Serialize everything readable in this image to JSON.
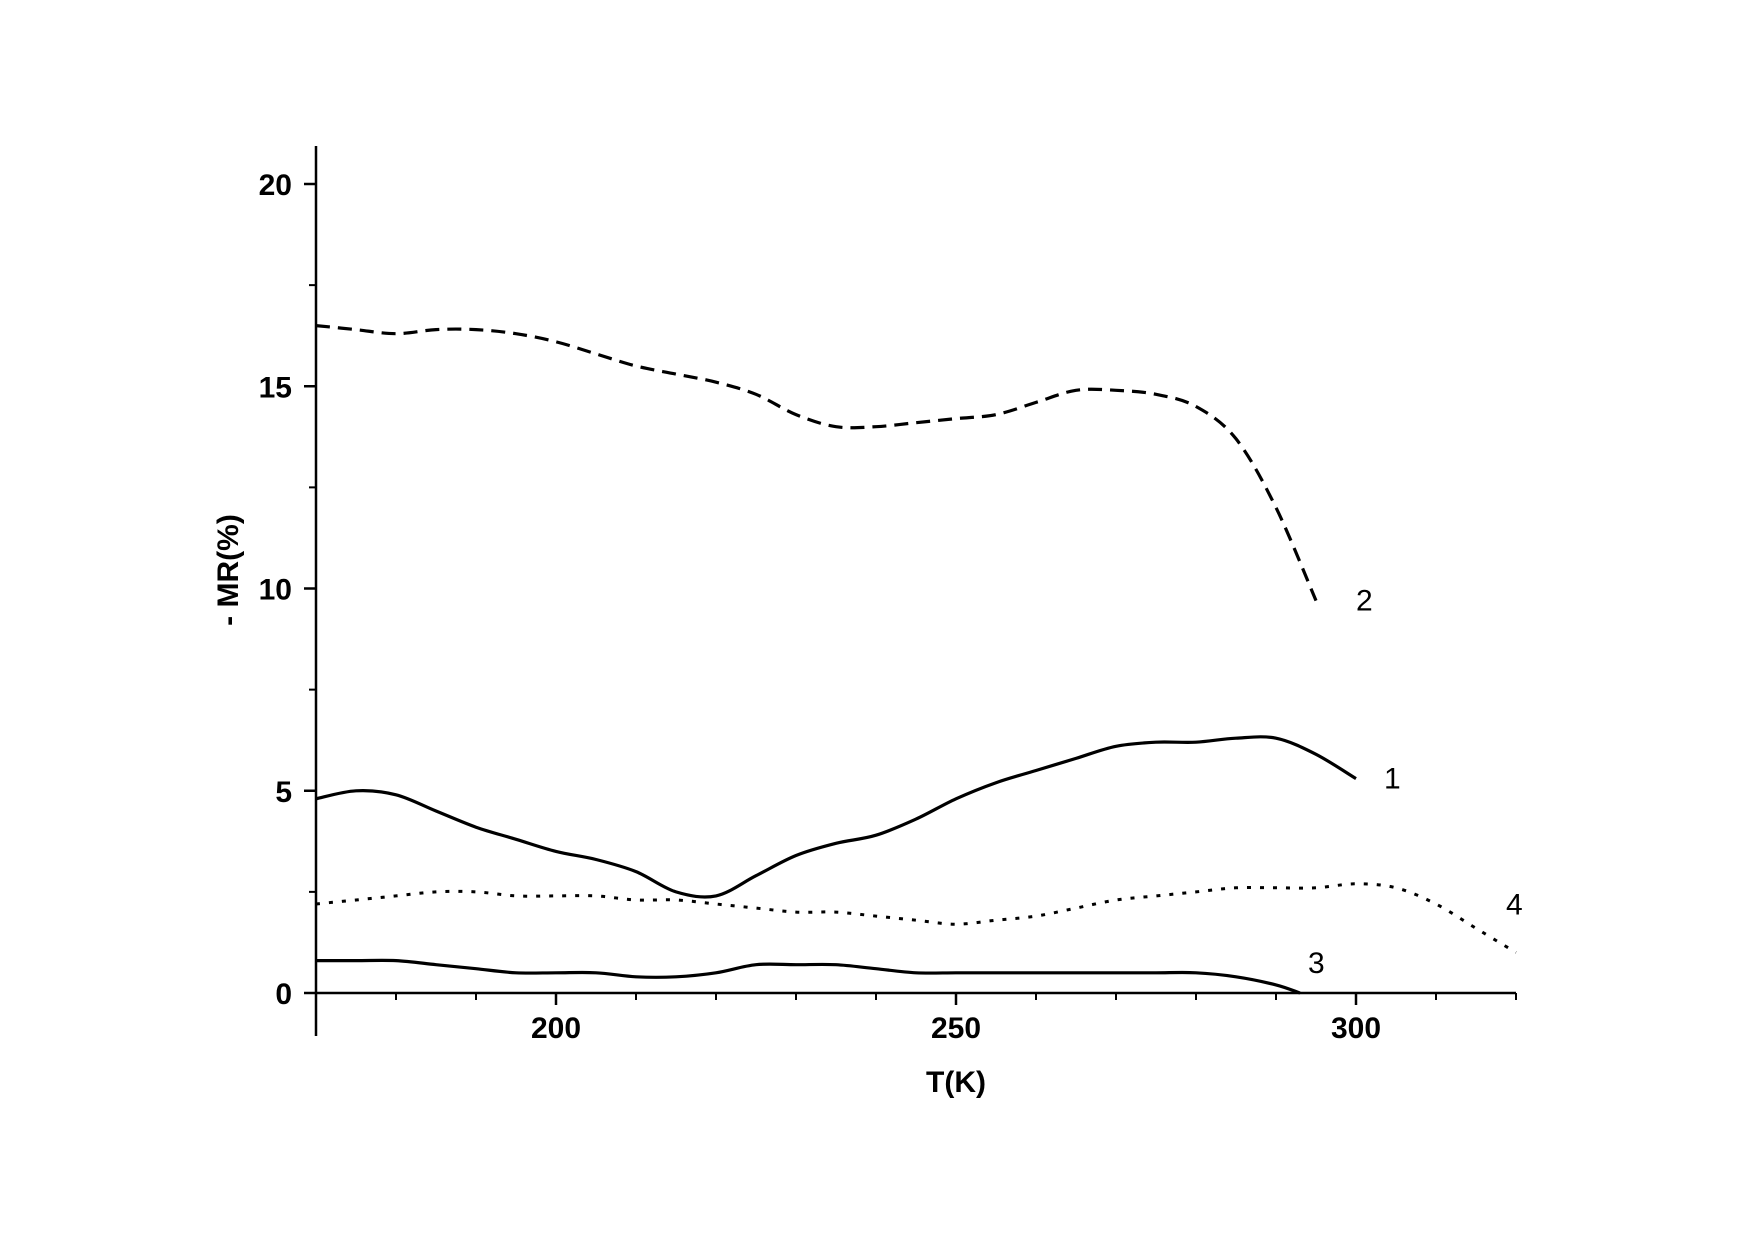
{
  "chart_data": {
    "type": "line",
    "xlabel": "T(K)",
    "ylabel": "- MR(%)",
    "xlim": [
      170,
      320
    ],
    "ylim": [
      0,
      21
    ],
    "xticks": [
      200,
      250,
      300
    ],
    "yticks": [
      0,
      5,
      10,
      15,
      20
    ],
    "xtick_labels": [
      "200",
      "250",
      "300"
    ],
    "ytick_labels": [
      "0",
      "5",
      "10",
      "15",
      "20"
    ],
    "grid": false,
    "legend": "none",
    "series": [
      {
        "label": "1",
        "style": "solid",
        "x": [
          170,
          175,
          180,
          185,
          190,
          195,
          200,
          205,
          210,
          215,
          220,
          225,
          230,
          235,
          240,
          245,
          250,
          255,
          260,
          265,
          270,
          275,
          280,
          285,
          290,
          295,
          300
        ],
        "y": [
          4.8,
          5.0,
          4.9,
          4.5,
          4.1,
          3.8,
          3.5,
          3.3,
          3.0,
          2.5,
          2.4,
          2.9,
          3.4,
          3.7,
          3.9,
          4.3,
          4.8,
          5.2,
          5.5,
          5.8,
          6.1,
          6.2,
          6.2,
          6.3,
          6.3,
          5.9,
          5.3
        ]
      },
      {
        "label": "2",
        "style": "dashed",
        "x": [
          170,
          175,
          180,
          185,
          190,
          195,
          200,
          205,
          210,
          215,
          220,
          225,
          230,
          235,
          240,
          245,
          250,
          255,
          260,
          265,
          270,
          275,
          280,
          285,
          290,
          295
        ],
        "y": [
          16.5,
          16.4,
          16.3,
          16.4,
          16.4,
          16.3,
          16.1,
          15.8,
          15.5,
          15.3,
          15.1,
          14.8,
          14.3,
          14.0,
          14.0,
          14.1,
          14.2,
          14.3,
          14.6,
          14.9,
          14.9,
          14.8,
          14.5,
          13.7,
          12.0,
          9.7
        ]
      },
      {
        "label": "3",
        "style": "solid",
        "x": [
          170,
          175,
          180,
          185,
          190,
          195,
          200,
          205,
          210,
          215,
          220,
          225,
          230,
          235,
          240,
          245,
          250,
          255,
          260,
          265,
          270,
          275,
          280,
          285,
          290,
          293
        ],
        "y": [
          0.8,
          0.8,
          0.8,
          0.7,
          0.6,
          0.5,
          0.5,
          0.5,
          0.4,
          0.4,
          0.5,
          0.7,
          0.7,
          0.7,
          0.6,
          0.5,
          0.5,
          0.5,
          0.5,
          0.5,
          0.5,
          0.5,
          0.5,
          0.4,
          0.2,
          0.0
        ]
      },
      {
        "label": "4",
        "style": "dotted",
        "x": [
          170,
          175,
          180,
          185,
          190,
          195,
          200,
          205,
          210,
          215,
          220,
          225,
          230,
          235,
          240,
          245,
          250,
          255,
          260,
          265,
          270,
          275,
          280,
          285,
          290,
          295,
          300,
          305,
          310,
          315,
          320
        ],
        "y": [
          2.2,
          2.3,
          2.4,
          2.5,
          2.5,
          2.4,
          2.4,
          2.4,
          2.3,
          2.3,
          2.2,
          2.1,
          2.0,
          2.0,
          1.9,
          1.8,
          1.7,
          1.8,
          1.9,
          2.1,
          2.3,
          2.4,
          2.5,
          2.6,
          2.6,
          2.6,
          2.7,
          2.6,
          2.2,
          1.6,
          1.0
        ]
      }
    ]
  },
  "style": {
    "line_color": "#000000",
    "background": "#ffffff"
  }
}
